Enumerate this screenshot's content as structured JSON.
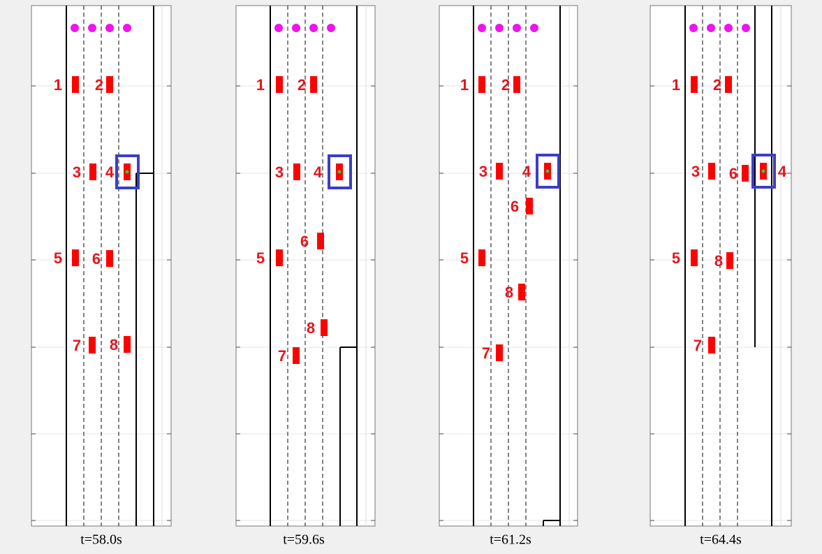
{
  "panels": [
    {
      "caption": "t=58.0s",
      "vehicles": [
        "1",
        "2",
        "3",
        "4",
        "5",
        "6",
        "7",
        "8"
      ]
    },
    {
      "caption": "t=59.6s",
      "vehicles": [
        "1",
        "2",
        "3",
        "4",
        "6",
        "5",
        "8",
        "7"
      ]
    },
    {
      "caption": "t=61.2s",
      "vehicles": [
        "1",
        "2",
        "3",
        "4",
        "6",
        "5",
        "8",
        "7"
      ]
    },
    {
      "caption": "t=64.4s",
      "vehicles": [
        "1",
        "2",
        "3",
        "6",
        "4",
        "5",
        "8",
        "7"
      ]
    }
  ]
}
